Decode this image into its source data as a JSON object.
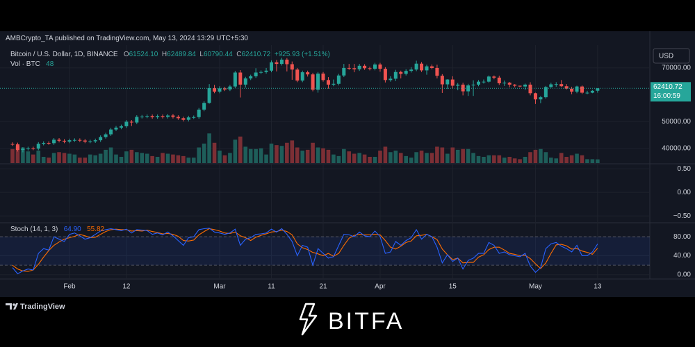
{
  "header": {
    "publisher": "AMBCrypto_TA published on TradingView.com, May 13, 2024 13:29 UTC+5:30",
    "symbol": "Bitcoin / U.S. Dollar, 1D, BINANCE",
    "open_label": "O",
    "open": "61524.10",
    "high_label": "H",
    "high": "62489.84",
    "low_label": "L",
    "low": "60790.44",
    "close_label": "C",
    "change": "+925.93 (+1.51%)",
    "volume_title": "Vol · BTC",
    "currency": "USD",
    "countdown": "16:00:59",
    "stoch_title": "Stoch (14, 1, 3)",
    "stoch_k_label": "64.90"
  },
  "footer": {
    "platform": "TradingView",
    "brand": "BITFA"
  },
  "chart_data": {
    "type": "candlestick",
    "categories": [
      null,
      null,
      null,
      null,
      null,
      null,
      null,
      null,
      null,
      null,
      null,
      "Feb",
      null,
      null,
      null,
      null,
      null,
      null,
      null,
      null,
      null,
      null,
      "12",
      null,
      null,
      null,
      null,
      null,
      null,
      null,
      null,
      null,
      null,
      null,
      null,
      null,
      null,
      null,
      null,
      null,
      "Mar",
      null,
      null,
      null,
      null,
      null,
      null,
      null,
      null,
      null,
      "11",
      null,
      null,
      null,
      null,
      null,
      null,
      null,
      null,
      null,
      "21",
      null,
      null,
      null,
      null,
      null,
      null,
      null,
      null,
      null,
      null,
      "Apr",
      null,
      null,
      null,
      null,
      null,
      null,
      null,
      null,
      null,
      null,
      null,
      null,
      null,
      "15",
      null,
      null,
      null,
      null,
      null,
      null,
      null,
      null,
      null,
      null,
      null,
      null,
      null,
      null,
      null,
      "May",
      null,
      null,
      null,
      null,
      null,
      null,
      null,
      null,
      null,
      null,
      null,
      "13"
    ],
    "open": [
      41700,
      41600,
      39500,
      39900,
      40100,
      40000,
      41800,
      42100,
      42000,
      43300,
      42900,
      42600,
      43100,
      43200,
      43000,
      42600,
      42700,
      43100,
      44300,
      45300,
      47100,
      47800,
      48300,
      50000,
      49700,
      51800,
      51900,
      52100,
      51700,
      52100,
      51800,
      52300,
      51800,
      51300,
      50700,
      51600,
      51700,
      54500,
      57000,
      62500,
      61200,
      62400,
      62000,
      63100,
      68300,
      63800,
      66100,
      66900,
      68300,
      68500,
      69000,
      72100,
      71500,
      73100,
      71400,
      69400,
      65300,
      68400,
      67600,
      61900,
      67900,
      65500,
      63800,
      64100,
      67200,
      70000,
      69900,
      69500,
      70800,
      69900,
      69700,
      71300,
      69700,
      65500,
      66000,
      68500,
      67800,
      68900,
      69400,
      71600,
      69100,
      70600,
      70000,
      67100,
      63900,
      65700,
      63400,
      63800,
      61300,
      63500,
      63800,
      64900,
      64900,
      66800,
      66400,
      64300,
      64500,
      63800,
      63400,
      63100,
      63800,
      60600,
      58300,
      59100,
      62900,
      63900,
      64000,
      63200,
      62300,
      61200,
      63100,
      60800,
      60800,
      61524.1
    ],
    "high": [
      42300,
      42200,
      40500,
      40700,
      40700,
      42400,
      42700,
      42700,
      43900,
      43900,
      43500,
      43700,
      43800,
      43800,
      43600,
      43300,
      43700,
      44900,
      45900,
      47700,
      48400,
      48900,
      50600,
      50600,
      52400,
      52500,
      52700,
      52700,
      52700,
      52700,
      52900,
      52900,
      52400,
      51900,
      52200,
      52300,
      55100,
      57600,
      64000,
      63700,
      63200,
      63000,
      63700,
      68900,
      69200,
      66700,
      67500,
      69900,
      69100,
      70000,
      72800,
      73000,
      73800,
      73700,
      72400,
      70000,
      69000,
      69000,
      68200,
      68500,
      68500,
      66600,
      65700,
      67800,
      71500,
      71500,
      71500,
      71500,
      71400,
      70500,
      71900,
      71900,
      70300,
      66900,
      69300,
      69000,
      69500,
      70300,
      72700,
      72200,
      71200,
      71300,
      71200,
      67700,
      65800,
      66900,
      64400,
      64500,
      64100,
      65400,
      65500,
      65700,
      67200,
      67200,
      67100,
      65300,
      64800,
      64000,
      63400,
      64200,
      64700,
      60800,
      59600,
      63300,
      64500,
      64700,
      65500,
      64000,
      63000,
      63400,
      63500,
      61500,
      61800,
      62489.84
    ],
    "low": [
      41000,
      38900,
      38600,
      39300,
      39400,
      39400,
      41200,
      41400,
      41400,
      42300,
      42000,
      42000,
      42500,
      42400,
      42000,
      42000,
      42100,
      42500,
      43700,
      44700,
      46500,
      47200,
      47700,
      48400,
      49100,
      51200,
      51300,
      51100,
      51100,
      51200,
      51200,
      51200,
      50700,
      50100,
      50100,
      51000,
      51100,
      53900,
      56700,
      60600,
      60600,
      61400,
      61400,
      62500,
      59000,
      62700,
      65500,
      66300,
      67700,
      67900,
      68400,
      68700,
      70900,
      68700,
      65600,
      64700,
      64700,
      66800,
      61300,
      60800,
      64900,
      62300,
      63200,
      63500,
      66600,
      69300,
      68400,
      68900,
      69300,
      69100,
      69100,
      68600,
      64600,
      64900,
      65100,
      66100,
      67200,
      68300,
      68800,
      68500,
      67500,
      69500,
      66100,
      60700,
      62200,
      62300,
      61700,
      59800,
      59600,
      59600,
      63200,
      64200,
      64500,
      65800,
      63700,
      63300,
      62800,
      62800,
      62800,
      61800,
      59800,
      56600,
      56900,
      58600,
      62600,
      63000,
      62900,
      62000,
      60200,
      60600,
      60300,
      60200,
      60600,
      60790.44
    ],
    "close": [
      41600,
      39500,
      39900,
      40100,
      40000,
      41800,
      42100,
      42000,
      43300,
      42900,
      42600,
      43100,
      43200,
      43000,
      42600,
      42700,
      43100,
      44300,
      45300,
      47100,
      47800,
      48300,
      50000,
      49700,
      51800,
      51900,
      52100,
      51700,
      52100,
      51800,
      52300,
      51800,
      51300,
      50700,
      51600,
      51700,
      54500,
      57000,
      62500,
      61200,
      62400,
      62000,
      63100,
      68300,
      63800,
      66100,
      66900,
      68300,
      68500,
      69000,
      72100,
      71500,
      73100,
      71400,
      69400,
      65300,
      68400,
      67600,
      61900,
      67900,
      65500,
      63800,
      64100,
      67200,
      70000,
      69900,
      69500,
      70800,
      69900,
      69700,
      71300,
      69700,
      65500,
      66000,
      68500,
      67800,
      68900,
      69400,
      71600,
      69100,
      70600,
      70000,
      67100,
      63900,
      65700,
      63400,
      63800,
      61300,
      63500,
      63800,
      64900,
      64900,
      66800,
      66400,
      64300,
      64500,
      63800,
      63400,
      63100,
      63800,
      60600,
      58300,
      59100,
      62900,
      63900,
      64000,
      63200,
      62300,
      61200,
      63100,
      60800,
      60800,
      61500,
      62410.72
    ],
    "volume": [
      180,
      220,
      200,
      150,
      110,
      160,
      80,
      70,
      130,
      140,
      130,
      120,
      110,
      70,
      70,
      110,
      100,
      120,
      170,
      200,
      110,
      80,
      150,
      170,
      140,
      130,
      120,
      90,
      80,
      130,
      120,
      110,
      100,
      90,
      70,
      70,
      200,
      250,
      380,
      260,
      160,
      100,
      130,
      300,
      340,
      210,
      180,
      180,
      190,
      110,
      250,
      230,
      220,
      260,
      290,
      200,
      160,
      170,
      260,
      200,
      190,
      170,
      110,
      90,
      180,
      150,
      120,
      130,
      110,
      80,
      80,
      160,
      210,
      140,
      160,
      130,
      90,
      70,
      140,
      160,
      130,
      130,
      210,
      200,
      120,
      200,
      170,
      180,
      180,
      130,
      90,
      80,
      100,
      100,
      100,
      70,
      80,
      60,
      50,
      80,
      140,
      170,
      180,
      140,
      70,
      60,
      130,
      80,
      100,
      120,
      100,
      50,
      50,
      48
    ],
    "stoch_k": [
      15,
      2,
      8,
      12,
      10,
      45,
      55,
      52,
      80,
      75,
      70,
      85,
      88,
      82,
      75,
      78,
      85,
      92,
      95,
      97,
      95,
      93,
      96,
      88,
      95,
      94,
      93,
      85,
      88,
      84,
      90,
      82,
      72,
      62,
      78,
      80,
      95,
      97,
      98,
      90,
      88,
      85,
      88,
      96,
      62,
      75,
      78,
      85,
      86,
      88,
      96,
      90,
      97,
      85,
      70,
      40,
      62,
      58,
      20,
      55,
      45,
      35,
      38,
      62,
      85,
      84,
      80,
      90,
      82,
      80,
      92,
      80,
      45,
      48,
      70,
      62,
      72,
      78,
      95,
      75,
      85,
      80,
      58,
      25,
      42,
      28,
      35,
      12,
      30,
      35,
      45,
      45,
      68,
      62,
      45,
      48,
      42,
      40,
      38,
      45,
      18,
      5,
      15,
      55,
      65,
      68,
      60,
      55,
      48,
      62,
      40,
      40,
      48,
      64.9
    ],
    "stoch_d": [
      20,
      12,
      8,
      7,
      10,
      22,
      37,
      51,
      62,
      69,
      75,
      78,
      81,
      85,
      82,
      78,
      79,
      85,
      91,
      95,
      96,
      95,
      95,
      92,
      93,
      92,
      94,
      91,
      89,
      86,
      87,
      85,
      81,
      72,
      71,
      73,
      84,
      91,
      97,
      95,
      92,
      88,
      87,
      90,
      82,
      78,
      72,
      79,
      83,
      86,
      90,
      91,
      94,
      91,
      84,
      65,
      57,
      53,
      47,
      44,
      40,
      45,
      39,
      45,
      62,
      77,
      83,
      85,
      84,
      84,
      85,
      84,
      72,
      58,
      54,
      60,
      68,
      71,
      82,
      83,
      85,
      80,
      74,
      54,
      42,
      32,
      35,
      25,
      26,
      26,
      37,
      42,
      53,
      58,
      58,
      52,
      45,
      43,
      40,
      41,
      34,
      23,
      13,
      25,
      45,
      63,
      64,
      61,
      54,
      55,
      50,
      47,
      43,
      55.82
    ],
    "ylim": [
      34600,
      78500
    ],
    "yticks": [
      {
        "value": 40000,
        "label": "40000.00"
      },
      {
        "value": 50000,
        "label": "50000.00"
      },
      {
        "value": 70000,
        "label": "70000.00"
      }
    ],
    "osc_ylim": [
      -0.63,
      0.59
    ],
    "osc_yticks": [
      {
        "value": 0.5,
        "label": "0.50"
      },
      {
        "value": 0,
        "label": "0.00"
      },
      {
        "value": -0.5,
        "label": "−0.50"
      }
    ],
    "stoch_ylim": [
      -9,
      108
    ],
    "stoch_yticks": [
      {
        "value": 0,
        "label": "0.00"
      },
      {
        "value": 40,
        "label": "40.00"
      },
      {
        "value": 80,
        "label": "80.00"
      }
    ],
    "stoch_bands": [
      20,
      80
    ],
    "up_color": "#26a69a",
    "down_color": "#ef5350",
    "up_volume_color": "#1e5e5a",
    "down_volume_color": "#7c2f35",
    "k_color": "#2962ff",
    "d_color": "#ff6d00",
    "grid": true
  }
}
